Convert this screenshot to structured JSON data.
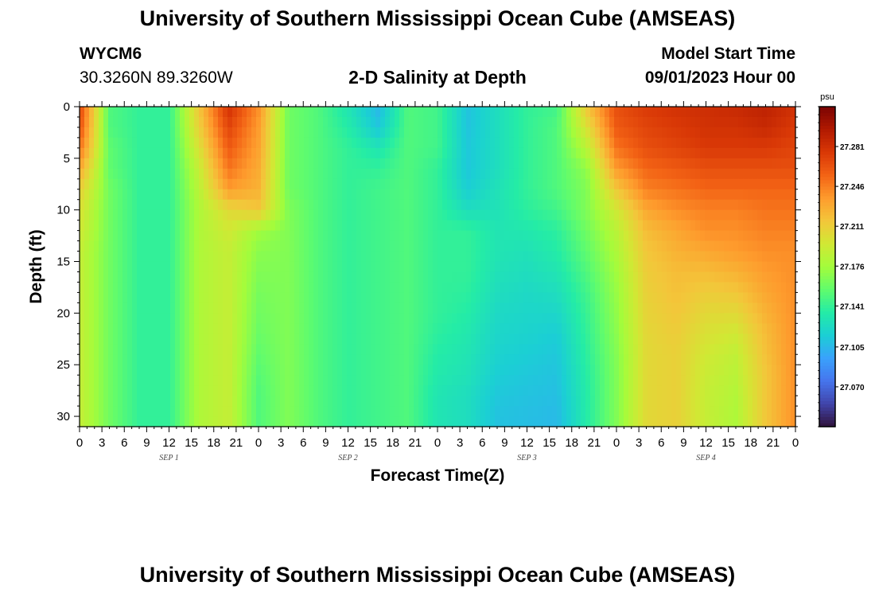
{
  "header": {
    "title": "University of Southern Mississippi Ocean Cube (AMSEAS)",
    "station": "WYCM6",
    "coordinates": "30.3260N  89.3260W",
    "subtitle": "2-D Salinity at Depth",
    "model_start_label": "Model Start Time",
    "model_start_value": "09/01/2023 Hour 00"
  },
  "footer": {
    "title": "University of Southern Mississippi Ocean Cube (AMSEAS)"
  },
  "chart_data": {
    "type": "heatmap",
    "title": "2-D Salinity at Depth",
    "xlabel": "Forecast Time(Z)",
    "ylabel": "Depth (ft)",
    "x_tick_labels": [
      "0",
      "3",
      "6",
      "9",
      "12",
      "15",
      "18",
      "21",
      "0",
      "3",
      "6",
      "9",
      "12",
      "15",
      "18",
      "21",
      "0",
      "3",
      "6",
      "9",
      "12",
      "15",
      "18",
      "21",
      "0",
      "3",
      "6",
      "9",
      "12",
      "15",
      "18",
      "21",
      "0"
    ],
    "x_hours": [
      0,
      3,
      6,
      9,
      12,
      15,
      18,
      21,
      24,
      27,
      30,
      33,
      36,
      39,
      42,
      45,
      48,
      51,
      54,
      57,
      60,
      63,
      66,
      69,
      72,
      75,
      78,
      81,
      84,
      87,
      90,
      93,
      96
    ],
    "day_labels": [
      {
        "label": "SEP 1",
        "hour": 12
      },
      {
        "label": "SEP 2",
        "hour": 36
      },
      {
        "label": "SEP 3",
        "hour": 60
      },
      {
        "label": "SEP 4",
        "hour": 84
      }
    ],
    "xlim": [
      0,
      96
    ],
    "y_ticks": [
      0,
      5,
      10,
      15,
      20,
      25,
      30
    ],
    "ylim": [
      0,
      31
    ],
    "y_reversed": true,
    "colorbar": {
      "unit": "psu",
      "ticks": [
        "27.281",
        "27.246",
        "27.211",
        "27.176",
        "27.141",
        "27.105",
        "27.070"
      ],
      "tick_values": [
        27.281,
        27.246,
        27.211,
        27.176,
        27.141,
        27.105,
        27.07
      ],
      "range": [
        27.035,
        27.316
      ],
      "colormap": [
        "#30123b",
        "#4145ab",
        "#4675ed",
        "#39a2fc",
        "#1bcfd4",
        "#24eca6",
        "#61fc6c",
        "#a4fc3b",
        "#d1e834",
        "#f3c63a",
        "#fe9b2d",
        "#f36315",
        "#d93806",
        "#b11901",
        "#7a0403"
      ]
    },
    "depths_ft": [
      0,
      2,
      4,
      6,
      8,
      10,
      12,
      14,
      16,
      18,
      20,
      22,
      24,
      26,
      28,
      30
    ],
    "time_hours": [
      0,
      4,
      8,
      12,
      16,
      20,
      24,
      28,
      32,
      36,
      40,
      44,
      48,
      52,
      56,
      60,
      64,
      68,
      72,
      76,
      80,
      84,
      88,
      92,
      96
    ],
    "values": [
      [
        27.27,
        27.15,
        27.14,
        27.14,
        27.215,
        27.28,
        27.24,
        27.16,
        27.15,
        27.13,
        27.105,
        27.15,
        27.145,
        27.11,
        27.125,
        27.14,
        27.145,
        27.215,
        27.265,
        27.275,
        27.28,
        27.282,
        27.285,
        27.29,
        27.28
      ],
      [
        27.265,
        27.15,
        27.14,
        27.14,
        27.21,
        27.27,
        27.235,
        27.16,
        27.15,
        27.135,
        27.112,
        27.15,
        27.145,
        27.11,
        27.125,
        27.14,
        27.15,
        27.2,
        27.26,
        27.27,
        27.275,
        27.28,
        27.28,
        27.285,
        27.275
      ],
      [
        27.25,
        27.155,
        27.14,
        27.14,
        27.2,
        27.26,
        27.232,
        27.16,
        27.15,
        27.14,
        27.13,
        27.15,
        27.145,
        27.112,
        27.125,
        27.14,
        27.15,
        27.185,
        27.25,
        27.265,
        27.27,
        27.275,
        27.275,
        27.275,
        27.27
      ],
      [
        27.23,
        27.155,
        27.14,
        27.14,
        27.19,
        27.25,
        27.228,
        27.16,
        27.15,
        27.14,
        27.14,
        27.15,
        27.14,
        27.112,
        27.125,
        27.14,
        27.15,
        27.17,
        27.235,
        27.255,
        27.26,
        27.265,
        27.265,
        27.265,
        27.265
      ],
      [
        27.21,
        27.16,
        27.14,
        27.14,
        27.185,
        27.235,
        27.225,
        27.16,
        27.15,
        27.14,
        27.145,
        27.15,
        27.14,
        27.115,
        27.128,
        27.14,
        27.15,
        27.165,
        27.215,
        27.245,
        27.25,
        27.255,
        27.255,
        27.255,
        27.255
      ],
      [
        27.2,
        27.16,
        27.14,
        27.14,
        27.18,
        27.205,
        27.215,
        27.165,
        27.15,
        27.14,
        27.145,
        27.15,
        27.14,
        27.125,
        27.128,
        27.138,
        27.145,
        27.165,
        27.195,
        27.23,
        27.24,
        27.245,
        27.245,
        27.25,
        27.25
      ],
      [
        27.195,
        27.16,
        27.14,
        27.14,
        27.18,
        27.195,
        27.175,
        27.165,
        27.15,
        27.14,
        27.145,
        27.15,
        27.14,
        27.14,
        27.13,
        27.132,
        27.138,
        27.16,
        27.185,
        27.22,
        27.23,
        27.24,
        27.24,
        27.245,
        27.245
      ],
      [
        27.19,
        27.16,
        27.14,
        27.14,
        27.18,
        27.19,
        27.168,
        27.165,
        27.15,
        27.14,
        27.145,
        27.15,
        27.14,
        27.14,
        27.13,
        27.128,
        27.135,
        27.155,
        27.18,
        27.215,
        27.225,
        27.23,
        27.235,
        27.24,
        27.24
      ],
      [
        27.19,
        27.16,
        27.14,
        27.14,
        27.18,
        27.19,
        27.165,
        27.165,
        27.15,
        27.14,
        27.145,
        27.15,
        27.14,
        27.14,
        27.128,
        27.125,
        27.13,
        27.15,
        27.175,
        27.212,
        27.22,
        27.22,
        27.225,
        27.235,
        27.24
      ],
      [
        27.19,
        27.16,
        27.14,
        27.14,
        27.18,
        27.19,
        27.162,
        27.165,
        27.15,
        27.14,
        27.145,
        27.15,
        27.14,
        27.138,
        27.125,
        27.122,
        27.125,
        27.145,
        27.172,
        27.21,
        27.218,
        27.212,
        27.215,
        27.23,
        27.24
      ],
      [
        27.19,
        27.16,
        27.14,
        27.14,
        27.18,
        27.19,
        27.16,
        27.165,
        27.15,
        27.14,
        27.145,
        27.15,
        27.14,
        27.135,
        27.122,
        27.12,
        27.12,
        27.142,
        27.17,
        27.208,
        27.215,
        27.205,
        27.205,
        27.225,
        27.24
      ],
      [
        27.19,
        27.16,
        27.14,
        27.14,
        27.18,
        27.19,
        27.158,
        27.165,
        27.15,
        27.14,
        27.145,
        27.15,
        27.138,
        27.132,
        27.12,
        27.118,
        27.115,
        27.14,
        27.168,
        27.206,
        27.212,
        27.2,
        27.195,
        27.22,
        27.24
      ],
      [
        27.19,
        27.16,
        27.14,
        27.14,
        27.18,
        27.19,
        27.155,
        27.165,
        27.15,
        27.14,
        27.145,
        27.15,
        27.135,
        27.13,
        27.118,
        27.115,
        27.112,
        27.138,
        27.166,
        27.205,
        27.21,
        27.195,
        27.188,
        27.218,
        27.24
      ],
      [
        27.19,
        27.16,
        27.14,
        27.14,
        27.18,
        27.19,
        27.152,
        27.165,
        27.15,
        27.14,
        27.145,
        27.15,
        27.133,
        27.128,
        27.115,
        27.112,
        27.11,
        27.136,
        27.165,
        27.205,
        27.21,
        27.192,
        27.185,
        27.215,
        27.24
      ],
      [
        27.19,
        27.16,
        27.14,
        27.14,
        27.18,
        27.19,
        27.15,
        27.165,
        27.15,
        27.14,
        27.145,
        27.15,
        27.13,
        27.125,
        27.112,
        27.11,
        27.108,
        27.135,
        27.165,
        27.205,
        27.21,
        27.19,
        27.182,
        27.215,
        27.24
      ],
      [
        27.19,
        27.16,
        27.14,
        27.14,
        27.18,
        27.19,
        27.15,
        27.165,
        27.15,
        27.14,
        27.145,
        27.15,
        27.13,
        27.125,
        27.11,
        27.108,
        27.106,
        27.135,
        27.165,
        27.205,
        27.21,
        27.19,
        27.18,
        27.215,
        27.24
      ]
    ]
  }
}
